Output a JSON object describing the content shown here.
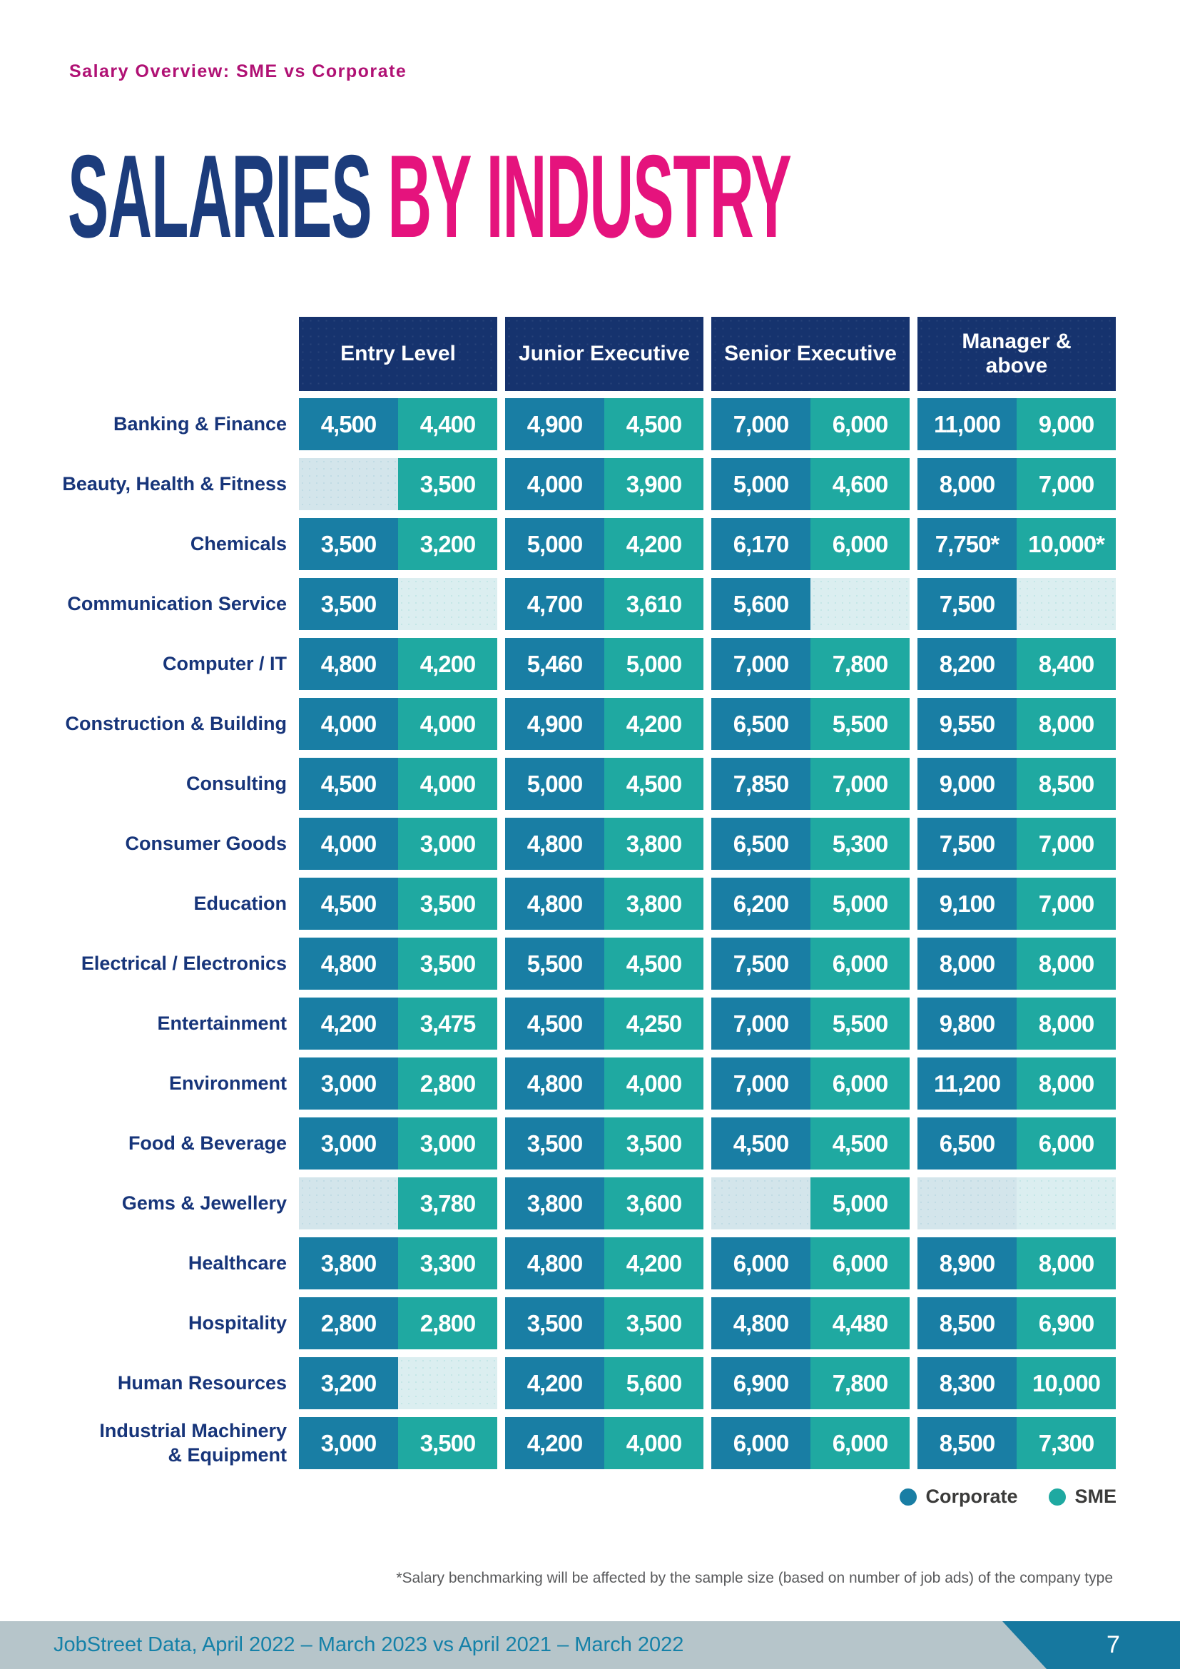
{
  "header": {
    "eyebrow": "Salary Overview: SME vs Corporate",
    "title_primary": "SALARIES ",
    "title_accent": "BY INDUSTRY"
  },
  "table": {
    "column_groups": [
      "Entry Level",
      "Junior Executive",
      "Senior Executive",
      "Manager &\nabove"
    ],
    "sub_columns": [
      "Corporate",
      "SME"
    ],
    "rows": [
      {
        "industry": "Banking & Finance",
        "values": [
          "4,500",
          "4,400",
          "4,900",
          "4,500",
          "7,000",
          "6,000",
          "11,000",
          "9,000"
        ]
      },
      {
        "industry": "Beauty, Health & Fitness",
        "values": [
          null,
          "3,500",
          "4,000",
          "3,900",
          "5,000",
          "4,600",
          "8,000",
          "7,000"
        ]
      },
      {
        "industry": "Chemicals",
        "values": [
          "3,500",
          "3,200",
          "5,000",
          "4,200",
          "6,170",
          "6,000",
          "7,750*",
          "10,000*"
        ]
      },
      {
        "industry": "Communication Service",
        "values": [
          "3,500",
          null,
          "4,700",
          "3,610",
          "5,600",
          null,
          "7,500",
          null
        ]
      },
      {
        "industry": "Computer / IT",
        "values": [
          "4,800",
          "4,200",
          "5,460",
          "5,000",
          "7,000",
          "7,800",
          "8,200",
          "8,400"
        ]
      },
      {
        "industry": "Construction & Building",
        "values": [
          "4,000",
          "4,000",
          "4,900",
          "4,200",
          "6,500",
          "5,500",
          "9,550",
          "8,000"
        ]
      },
      {
        "industry": "Consulting",
        "values": [
          "4,500",
          "4,000",
          "5,000",
          "4,500",
          "7,850",
          "7,000",
          "9,000",
          "8,500"
        ]
      },
      {
        "industry": "Consumer Goods",
        "values": [
          "4,000",
          "3,000",
          "4,800",
          "3,800",
          "6,500",
          "5,300",
          "7,500",
          "7,000"
        ]
      },
      {
        "industry": "Education",
        "values": [
          "4,500",
          "3,500",
          "4,800",
          "3,800",
          "6,200",
          "5,000",
          "9,100",
          "7,000"
        ]
      },
      {
        "industry": "Electrical / Electronics",
        "values": [
          "4,800",
          "3,500",
          "5,500",
          "4,500",
          "7,500",
          "6,000",
          "8,000",
          "8,000"
        ]
      },
      {
        "industry": "Entertainment",
        "values": [
          "4,200",
          "3,475",
          "4,500",
          "4,250",
          "7,000",
          "5,500",
          "9,800",
          "8,000"
        ]
      },
      {
        "industry": "Environment",
        "values": [
          "3,000",
          "2,800",
          "4,800",
          "4,000",
          "7,000",
          "6,000",
          "11,200",
          "8,000"
        ]
      },
      {
        "industry": "Food & Beverage",
        "values": [
          "3,000",
          "3,000",
          "3,500",
          "3,500",
          "4,500",
          "4,500",
          "6,500",
          "6,000"
        ]
      },
      {
        "industry": "Gems & Jewellery",
        "values": [
          null,
          "3,780",
          "3,800",
          "3,600",
          null,
          "5,000",
          null,
          null
        ]
      },
      {
        "industry": "Healthcare",
        "values": [
          "3,800",
          "3,300",
          "4,800",
          "4,200",
          "6,000",
          "6,000",
          "8,900",
          "8,000"
        ]
      },
      {
        "industry": "Hospitality",
        "values": [
          "2,800",
          "2,800",
          "3,500",
          "3,500",
          "4,800",
          "4,480",
          "8,500",
          "6,900"
        ]
      },
      {
        "industry": "Human Resources",
        "values": [
          "3,200",
          null,
          "4,200",
          "5,600",
          "6,900",
          "7,800",
          "8,300",
          "10,000"
        ]
      },
      {
        "industry": "Industrial Machinery\n& Equipment",
        "values": [
          "3,000",
          "3,500",
          "4,200",
          "4,000",
          "6,000",
          "6,000",
          "8,500",
          "7,300"
        ]
      }
    ]
  },
  "legend": {
    "items": [
      {
        "label": "Corporate",
        "color": "#197ea4"
      },
      {
        "label": "SME",
        "color": "#1fa9a1"
      }
    ]
  },
  "footnote": "*Salary benchmarking will be affected by the sample size (based on number of job ads) of the company type",
  "footer": {
    "text": "JobStreet Data, April 2022 – March 2023 vs April 2021 – March 2022",
    "page": "7"
  },
  "colors": {
    "corporate_cell": "#197ea4",
    "sme_cell": "#1fa9a1",
    "empty_corporate_cell": "#d3e5eb",
    "empty_sme_cell": "#dbeef0",
    "header_navy": "#16336e",
    "title_navy": "#1c3c7c",
    "title_pink": "#e5137d",
    "eyebrow_magenta": "#b01174",
    "footer_bar": "#b6c5ca",
    "footer_text": "#1581a8",
    "page_tab": "#16789f"
  }
}
